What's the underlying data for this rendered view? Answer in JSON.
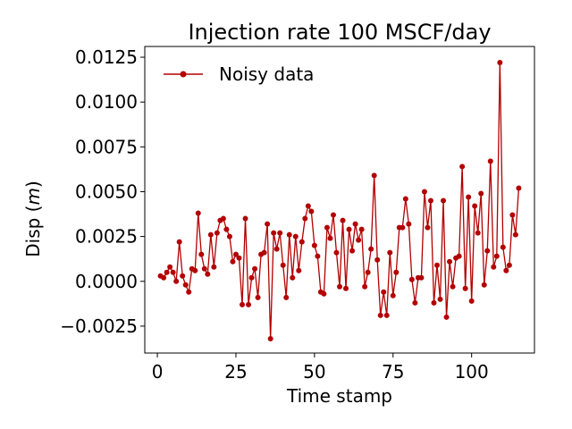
{
  "chart_data": {
    "type": "line",
    "title": "Injection rate 100 MSCF/day",
    "xlabel": "Time stamp",
    "ylabel_prefix": "Disp (",
    "ylabel_unit": "m",
    "ylabel_suffix": ")",
    "xlim": [
      -4,
      120
    ],
    "ylim": [
      -0.004,
      0.0131
    ],
    "xticks": [
      0,
      25,
      50,
      75,
      100
    ],
    "xtick_labels": [
      "0",
      "25",
      "50",
      "75",
      "100"
    ],
    "yticks": [
      -0.0025,
      0.0,
      0.0025,
      0.005,
      0.0075,
      0.01,
      0.0125
    ],
    "ytick_labels": [
      "−0.0025",
      "0.0000",
      "0.0025",
      "0.0050",
      "0.0075",
      "0.0100",
      "0.0125"
    ],
    "legend": "top-left",
    "series": [
      {
        "name": "Noisy data",
        "color": "#b30000",
        "marker": "circle",
        "x": [
          1,
          2,
          3,
          4,
          5,
          6,
          7,
          8,
          9,
          10,
          11,
          12,
          13,
          14,
          15,
          16,
          17,
          18,
          19,
          20,
          21,
          22,
          23,
          24,
          25,
          26,
          27,
          28,
          29,
          30,
          31,
          32,
          33,
          34,
          35,
          36,
          37,
          38,
          39,
          40,
          41,
          42,
          43,
          44,
          45,
          46,
          47,
          48,
          49,
          50,
          51,
          52,
          53,
          54,
          55,
          56,
          57,
          58,
          59,
          60,
          61,
          62,
          63,
          64,
          65,
          66,
          67,
          68,
          69,
          70,
          71,
          72,
          73,
          74,
          75,
          76,
          77,
          78,
          79,
          80,
          81,
          82,
          83,
          84,
          85,
          86,
          87,
          88,
          89,
          90,
          91,
          92,
          93,
          94,
          95,
          96,
          97,
          98,
          99,
          100,
          101,
          102,
          103,
          104,
          105,
          106,
          107,
          108,
          109,
          110,
          111,
          112,
          113,
          114,
          115
        ],
        "y": [
          0.0003,
          0.0002,
          0.0005,
          0.0008,
          0.0005,
          0.0,
          0.0022,
          0.0003,
          -0.0002,
          -0.0006,
          0.0007,
          0.0006,
          0.0038,
          0.0015,
          0.0007,
          0.0004,
          0.0026,
          0.0008,
          0.0027,
          0.0034,
          0.0035,
          0.0029,
          0.0025,
          0.0011,
          0.0015,
          0.0013,
          -0.0013,
          0.0035,
          -0.0013,
          0.0002,
          0.0007,
          -0.0009,
          0.0015,
          0.0016,
          0.0032,
          -0.0032,
          0.0027,
          0.0018,
          0.0027,
          0.0009,
          -0.0009,
          0.0026,
          0.0002,
          0.0025,
          0.0006,
          0.0022,
          0.0035,
          0.0042,
          0.0039,
          0.002,
          0.0014,
          -0.0006,
          -0.0007,
          0.003,
          0.0024,
          0.0037,
          0.0016,
          -0.0003,
          0.0034,
          -0.0004,
          0.0029,
          0.0017,
          0.0032,
          0.0023,
          0.0029,
          -0.0003,
          0.0005,
          0.0018,
          0.0059,
          0.0012,
          -0.0019,
          -0.0006,
          -0.0019,
          0.0016,
          -0.0008,
          0.0005,
          0.003,
          0.003,
          0.0046,
          0.0032,
          0.0001,
          -0.0012,
          0.0002,
          0.0002,
          0.005,
          0.003,
          0.0045,
          -0.0012,
          0.0009,
          -0.001,
          0.0045,
          -0.002,
          0.0011,
          -0.0003,
          0.0013,
          0.0014,
          0.0064,
          -0.0004,
          0.0047,
          -0.0011,
          0.0042,
          0.0027,
          0.0049,
          -0.0002,
          0.0017,
          0.0067,
          0.0008,
          0.0014,
          0.0122,
          0.0019,
          0.0006,
          0.0009,
          0.0037,
          0.0026,
          0.0052
        ]
      }
    ]
  }
}
